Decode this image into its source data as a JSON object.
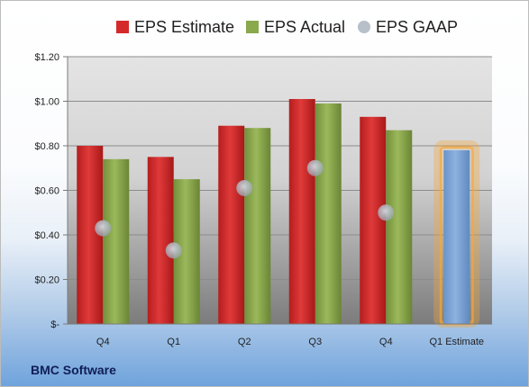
{
  "chart_data": {
    "type": "bar",
    "title": "",
    "xlabel": "",
    "ylabel": "",
    "categories": [
      "Q4",
      "Q1",
      "Q2",
      "Q3",
      "Q4",
      "Q1 Estimate"
    ],
    "series": [
      {
        "name": "EPS Estimate",
        "kind": "bar",
        "color": "#d42a2a",
        "values": [
          0.8,
          0.75,
          0.89,
          1.01,
          0.93,
          null
        ]
      },
      {
        "name": "EPS Actual",
        "kind": "bar",
        "color": "#8aa84c",
        "values": [
          0.74,
          0.65,
          0.88,
          0.99,
          0.87,
          0.78
        ]
      },
      {
        "name": "EPS GAAP",
        "kind": "marker",
        "color": "#b7bfc9",
        "values": [
          0.43,
          0.33,
          0.61,
          0.7,
          0.5,
          null
        ]
      }
    ],
    "highlight": {
      "category": "Q1 Estimate",
      "bar_color": "#7ba3d6",
      "glow_color": "#f7a637"
    },
    "ylim": [
      0,
      1.2
    ],
    "yticks": [
      0,
      0.2,
      0.4,
      0.6,
      0.8,
      1.0,
      1.2
    ],
    "ytick_labels": [
      "$-",
      "$0.20",
      "$0.40",
      "$0.60",
      "$0.80",
      "$1.00",
      "$1.20"
    ],
    "grid": true,
    "legend_position": "top"
  },
  "footer": {
    "company": "BMC Software"
  }
}
